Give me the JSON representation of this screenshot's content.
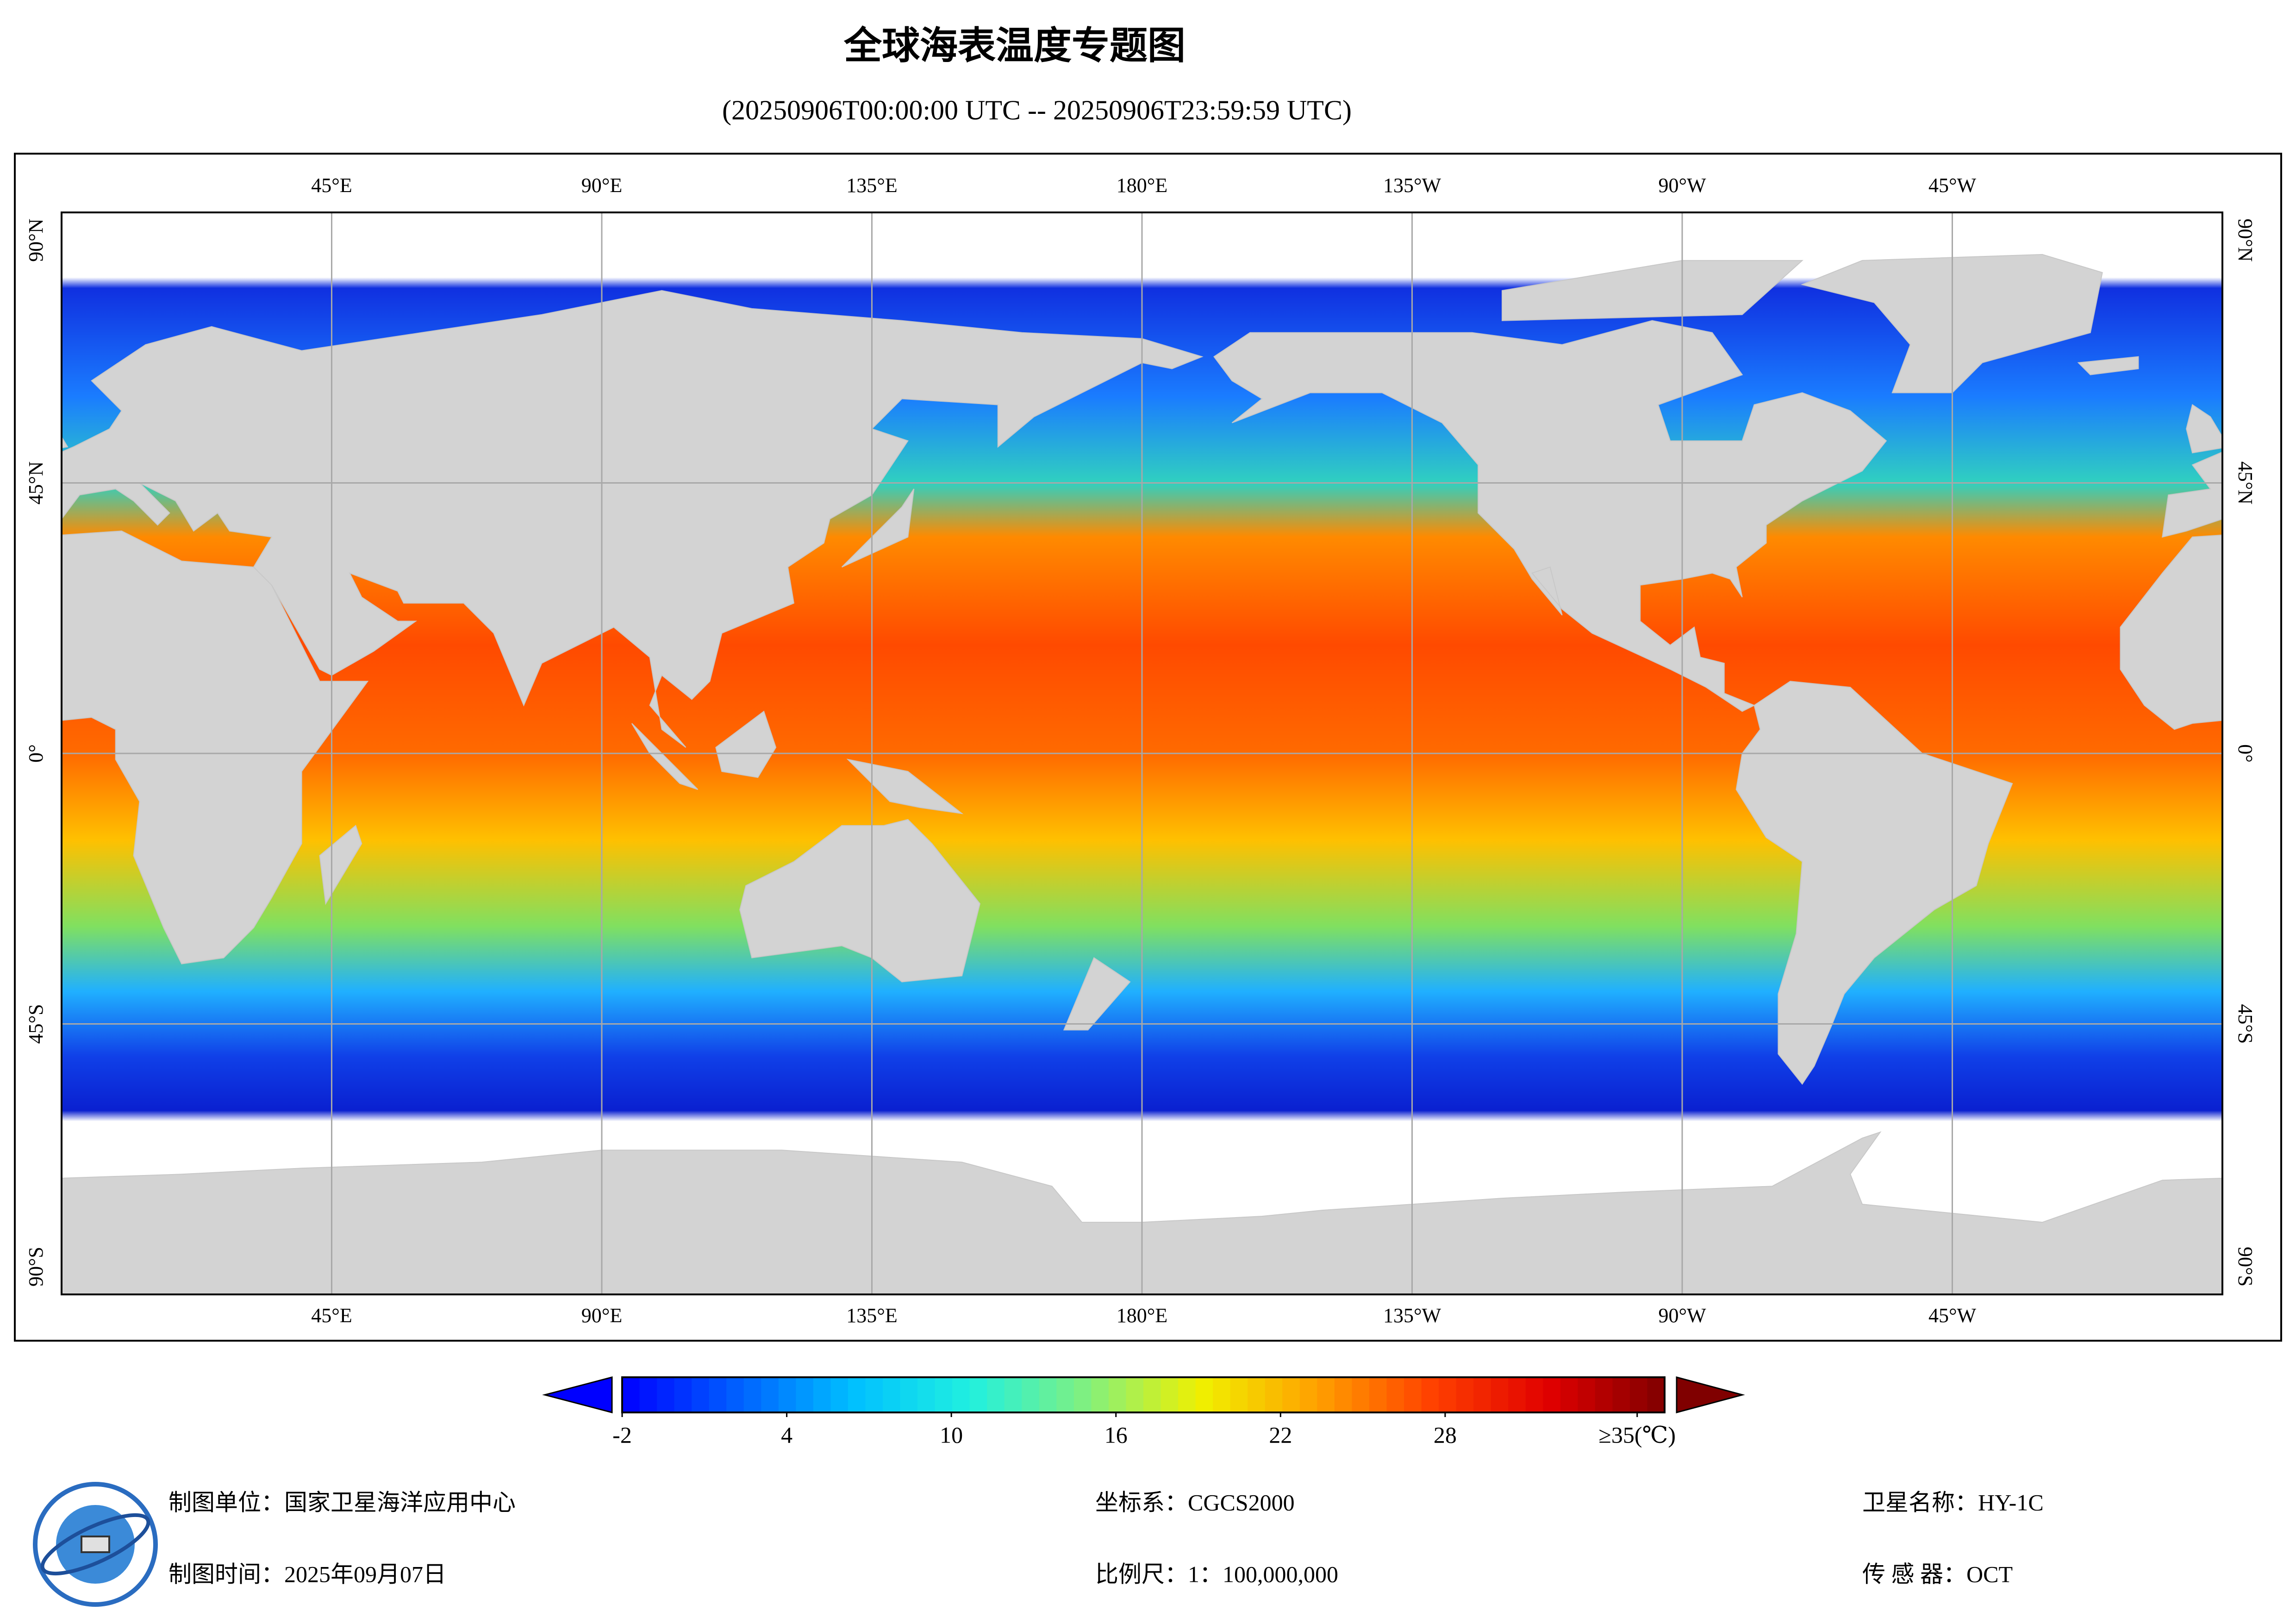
{
  "header": {
    "title": "全球海表温度专题图",
    "subtitle": "(20250906T00:00:00 UTC -- 20250906T23:59:59 UTC)"
  },
  "map": {
    "lonlim": [
      0,
      360
    ],
    "latlim": [
      -90,
      90
    ],
    "lon_labels": [
      {
        "value": 45,
        "label": "45°E"
      },
      {
        "value": 90,
        "label": "90°E"
      },
      {
        "value": 135,
        "label": "135°E"
      },
      {
        "value": 180,
        "label": "180°E"
      },
      {
        "value": 225,
        "label": "135°W"
      },
      {
        "value": 270,
        "label": "90°W"
      },
      {
        "value": 315,
        "label": "45°W"
      }
    ],
    "lat_labels": [
      {
        "value": 90,
        "label": "90°N"
      },
      {
        "value": 45,
        "label": "45°N"
      },
      {
        "value": 0,
        "label": "0°"
      },
      {
        "value": -45,
        "label": "45°S"
      },
      {
        "value": -90,
        "label": "90°S"
      }
    ],
    "grid": true
  },
  "colorbar": {
    "range": [
      -2,
      36
    ],
    "colors": [
      "#0000ff",
      "#0060ff",
      "#00c0ff",
      "#20f0e0",
      "#80f080",
      "#f0f000",
      "#ffa000",
      "#ff4000",
      "#e00000",
      "#800000"
    ],
    "ticks": [
      -2,
      4,
      10,
      16,
      22,
      28,
      {
        "value": 35,
        "label": "≥35(℃)"
      }
    ]
  },
  "footer": {
    "org": "制图单位：国家卫星海洋应用中心",
    "date": "制图时间：2025年09月07日",
    "crs": "坐标系：CGCS2000",
    "scale": "比例尺：1：100,000,000",
    "satellite": "卫星名称：HY-1C",
    "sensor": "传 感 器：OCT"
  }
}
